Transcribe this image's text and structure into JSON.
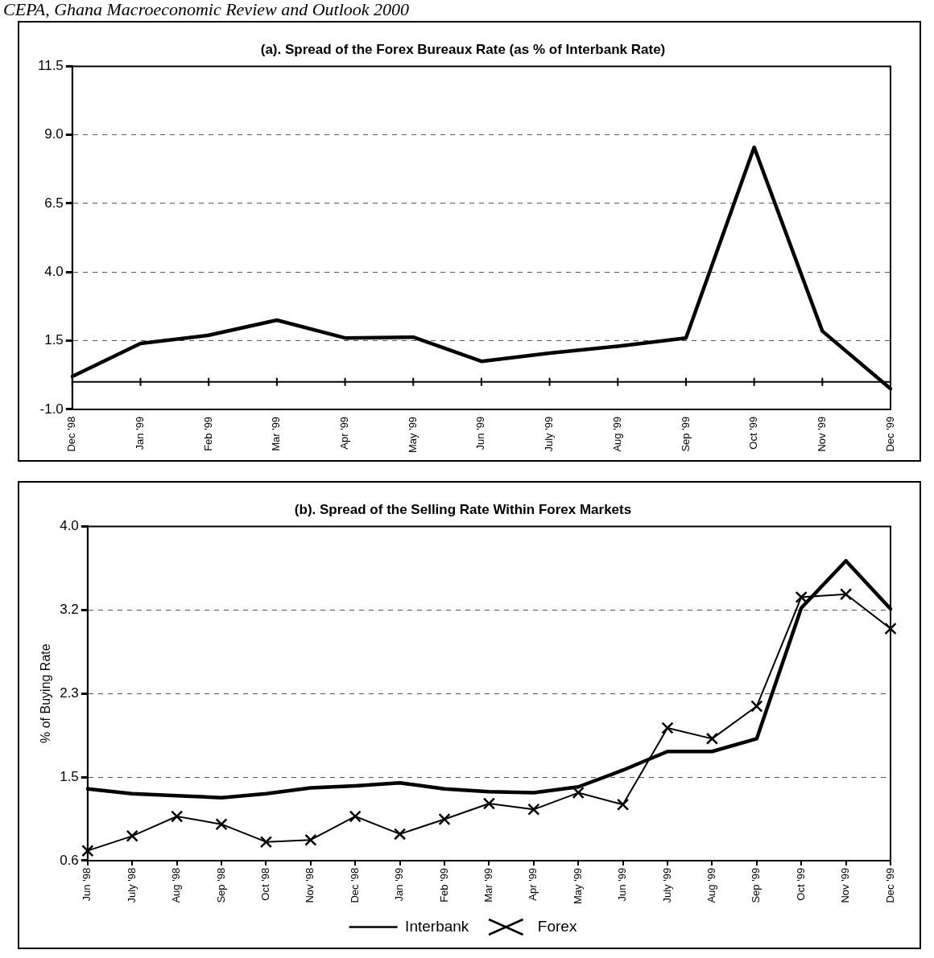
{
  "chart_data": [
    {
      "type": "line",
      "title": "(a). Spread of the Forex Bureaux Rate (as % of Interbank Rate)",
      "annotations": [
        "CEPA, Ghana Macroeconomic Review and Outlook 2000"
      ],
      "categories": [
        "Dec '98",
        "Jan '99",
        "Feb '99",
        "Mar '99",
        "Apr '99",
        "May '99",
        "Jun '99",
        "July '99",
        "Aug '99",
        "Sep '99",
        "Oct '99",
        "Nov '99",
        "Dec '99"
      ],
      "series": [
        {
          "color": "#000000",
          "marker": "none",
          "values": [
            0.2,
            1.4,
            1.7,
            2.25,
            1.6,
            1.63,
            0.75,
            1.05,
            1.3,
            1.6,
            8.55,
            1.85,
            -0.25
          ]
        }
      ],
      "ylim": [
        -1,
        11.5
      ],
      "yticks": [
        {
          "value": -1,
          "label": "-1.0"
        },
        1.5,
        {
          "value": 4,
          "label": "4.0"
        },
        6.5,
        {
          "value": 9,
          "label": "9.0"
        },
        11.5
      ],
      "ref_lines": [
        {
          "axis": "y",
          "value": 0,
          "color": "#000000",
          "line_style": "solid"
        }
      ],
      "grid": "y",
      "line_style": "solid",
      "legend": false
    },
    {
      "type": "line",
      "title": "(b). Spread of the Selling Rate Within Forex Markets",
      "ylabel": "% of Buying Rate",
      "categories": [
        "Jun '98",
        "July '98",
        "Aug '98",
        "Sep '98",
        "Oct '98",
        "Nov '98",
        "Dec '98",
        "Jan '99",
        "Feb '99",
        "Mar '99",
        "Apr '99",
        "May '99",
        "Jun '99",
        "July '99",
        "Aug '99",
        "Sep '99",
        "Oct '99",
        "Nov '99",
        "Dec '99"
      ],
      "series": [
        {
          "name": "Interbank",
          "color": "#000000",
          "marker": "none",
          "values": [
            1.33,
            1.28,
            1.26,
            1.24,
            1.28,
            1.34,
            1.36,
            1.39,
            1.33,
            1.3,
            1.29,
            1.35,
            1.52,
            1.71,
            1.71,
            1.84,
            3.17,
            3.65,
            3.16
          ]
        },
        {
          "name": "Forex",
          "color": "#000000",
          "marker": "cross",
          "values": [
            0.7,
            0.85,
            1.05,
            0.97,
            0.79,
            0.81,
            1.05,
            0.87,
            1.02,
            1.18,
            1.12,
            1.29,
            1.17,
            1.95,
            1.84,
            2.17,
            3.28,
            3.31,
            2.96
          ]
        }
      ],
      "ylim": [
        0.6,
        4
      ],
      "yticks": [
        0.6,
        {
          "value": 1.45,
          "label": "1.5"
        },
        2.3,
        {
          "value": 3.15,
          "label": "3.2"
        },
        {
          "value": 4,
          "label": "4.0"
        }
      ],
      "grid": "y",
      "line_style": "solid",
      "legend": "bottom"
    }
  ]
}
